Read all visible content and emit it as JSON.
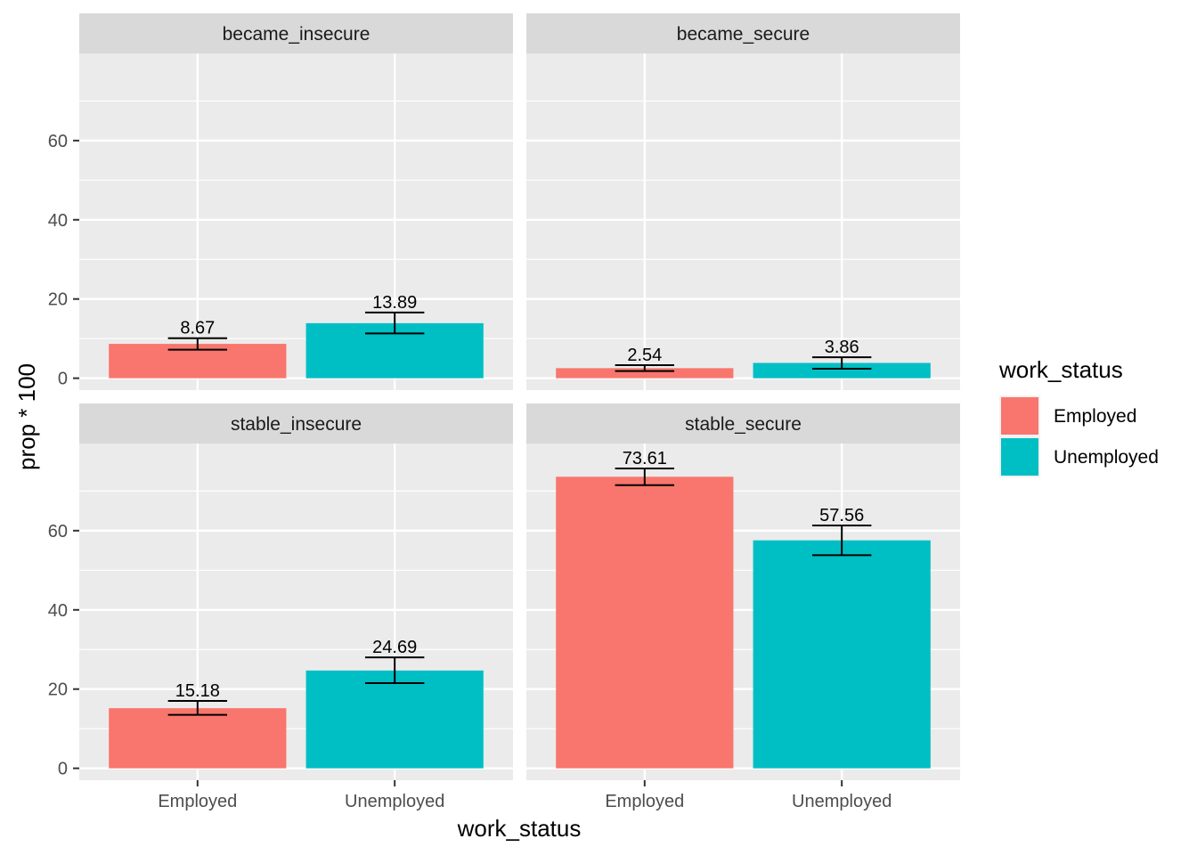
{
  "chart_data": {
    "type": "bar",
    "facets": [
      "became_insecure",
      "became_secure",
      "stable_insecure",
      "stable_secure"
    ],
    "categories": [
      "Employed",
      "Unemployed"
    ],
    "series": [
      {
        "name": "Employed",
        "color": "#F8766D"
      },
      {
        "name": "Unemployed",
        "color": "#00BFC4"
      }
    ],
    "panels": [
      {
        "facet": "became_insecure",
        "values": [
          8.67,
          13.89
        ],
        "error_low": [
          7.2,
          11.3
        ],
        "error_high": [
          10.1,
          16.6
        ],
        "labels": [
          "8.67",
          "13.89"
        ]
      },
      {
        "facet": "became_secure",
        "values": [
          2.54,
          3.86
        ],
        "error_low": [
          1.8,
          2.4
        ],
        "error_high": [
          3.3,
          5.3
        ],
        "labels": [
          "2.54",
          "3.86"
        ]
      },
      {
        "facet": "stable_insecure",
        "values": [
          15.18,
          24.69
        ],
        "error_low": [
          13.5,
          21.5
        ],
        "error_high": [
          17.0,
          28.0
        ],
        "labels": [
          "15.18",
          "24.69"
        ]
      },
      {
        "facet": "stable_secure",
        "values": [
          73.61,
          57.56
        ],
        "error_low": [
          71.5,
          53.8
        ],
        "error_high": [
          75.7,
          61.3
        ],
        "labels": [
          "73.61",
          "57.56"
        ]
      }
    ],
    "ylim": [
      -3,
      82
    ],
    "yticks": [
      0,
      20,
      40,
      60
    ],
    "ytick_labels": [
      "0",
      "20",
      "40",
      "60"
    ],
    "xlabel": "work_status",
    "ylabel": "prop * 100",
    "legend": {
      "title": "work_status",
      "position": "right",
      "items": [
        "Employed",
        "Unemployed"
      ]
    },
    "grid": true
  }
}
